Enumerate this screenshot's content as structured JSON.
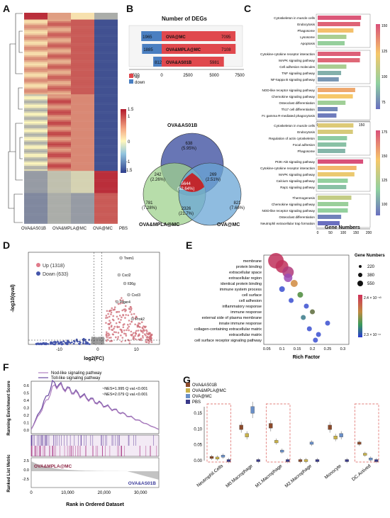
{
  "panel_labels": {
    "A": "A",
    "B": "B",
    "C": "C",
    "D": "D",
    "E": "E",
    "F": "F",
    "G": "G"
  },
  "heatmap": {
    "columns": [
      "OVA&AS01B",
      "OVA&MPLA@MC",
      "OVA@MC",
      "PBS"
    ],
    "scale_ticks": [
      "1.5",
      "1",
      "0",
      "-1",
      "-1.5"
    ]
  },
  "chart_data": [
    {
      "type": "bar",
      "title": "Number of DEGs",
      "categories": [
        "OVA@MC",
        "OVA&MPLA@MC",
        "OVA&AS01B"
      ],
      "series": [
        {
          "name": "up",
          "values": [
            7095,
            7108,
            5981
          ],
          "color": "#e0484d"
        },
        {
          "name": "down",
          "values": [
            1965,
            1885,
            812
          ],
          "color": "#4a7fc1"
        }
      ],
      "x_ticks": [
        "2500",
        "0",
        "2500",
        "5000",
        "7500"
      ],
      "legend": [
        "up",
        "down"
      ]
    },
    {
      "type": "venn",
      "sets": [
        "OVA&AS01B",
        "OVA&MPLA@MC",
        "OVA@MC"
      ],
      "regions": [
        {
          "count": "638",
          "pct": "(5.95%)"
        },
        {
          "count": "242",
          "pct": "(2.26%)"
        },
        {
          "count": "269",
          "pct": "(2.51%)"
        },
        {
          "count": "5644",
          "pct": "(52.64%)"
        },
        {
          "count": "781",
          "pct": "(7.28%)"
        },
        {
          "count": "821",
          "pct": "(7.66%)"
        },
        {
          "count": "2326",
          "pct": "(21.7%)"
        }
      ]
    },
    {
      "type": "bar",
      "orientation": "horizontal",
      "xlabel": "Gene Numbers",
      "groups_top": [
        {
          "terms": [
            "Cytoskeleton in muscle cells",
            "Endocytosis",
            "Phagosome",
            "Lysosome",
            "Apoptosis"
          ],
          "values": [
            148,
            145,
            122,
            98,
            92
          ]
        },
        {
          "terms": [
            "Cytokine-cytokine receptor interaction",
            "MAPK signaling pathway",
            "Cell adhesion molecules",
            "TNF signaling pathway",
            "NF-kappa B signaling pathway"
          ],
          "values": [
            146,
            144,
            98,
            80,
            72
          ]
        },
        {
          "terms": [
            "NOD-like receptor signaling pathway",
            "Chemokine signaling pathway",
            "Osteoclast differentiation",
            "Th17 cell differentiation",
            "Fc gamma R-mediated phagocytosis"
          ],
          "values": [
            128,
            120,
            95,
            68,
            64
          ]
        }
      ],
      "top_ticks": [
        "0",
        "50",
        "100",
        "150"
      ],
      "top_scale": [
        "150",
        "125",
        "100",
        "75"
      ],
      "groups_bottom": [
        {
          "terms": [
            "Cytoskeleton in muscle cells",
            "Endocytosis",
            "Regulation of actin cytoskeleton",
            "Focal adhesion",
            "Phagosome"
          ],
          "values": [
            140,
            138,
            115,
            112,
            108
          ]
        },
        {
          "terms": [
            "PI3K-Akt signaling pathway",
            "Cytokine-cytokine receptor interaction",
            "MAPK signaling pathway",
            "Calcium signaling pathway",
            "Rap1 signaling pathway"
          ],
          "values": [
            178,
            152,
            144,
            118,
            112
          ]
        },
        {
          "terms": [
            "Thermogenesis",
            "Chemokine signaling pathway",
            "NOD-like receptor signaling pathway",
            "Osteoclast differentiation",
            "Neutrophil extracellular trap formation"
          ],
          "values": [
            132,
            120,
            118,
            92,
            86
          ]
        }
      ],
      "bottom_ticks": [
        "0",
        "50",
        "100",
        "150",
        "200"
      ],
      "bottom_scale": [
        "175",
        "150",
        "125",
        "100"
      ]
    },
    {
      "type": "scatter",
      "xlabel": "log2(FC)",
      "ylabel": "-log10(qval)",
      "legend": [
        "Up (1318)",
        "Down (633)"
      ],
      "x_ticks": [
        "-10",
        "0",
        "10"
      ],
      "labels": [
        "Trem1",
        "Cxcl2",
        "Il36g",
        "Cxcl3",
        "Ptger4",
        "Prok2"
      ]
    },
    {
      "type": "bubble",
      "xlabel": "Rich Factor",
      "terms": [
        "membrane",
        "protein binding",
        "extracellular space",
        "extracellular region",
        "identical protein binding",
        "immune system process",
        "cell surface",
        "cell adhesion",
        "inflammatory response",
        "immune response",
        "external side of plasma membrane",
        "innate immune response",
        "collagen-containing extracellular matrix",
        "extracellular matrix",
        "cell surface receptor signaling pathway"
      ],
      "rich_factor": [
        0.08,
        0.1,
        0.12,
        0.12,
        0.14,
        0.1,
        0.16,
        0.13,
        0.18,
        0.2,
        0.17,
        0.25,
        0.19,
        0.22,
        0.21
      ],
      "x_ticks": [
        "0.05",
        "0.1",
        "0.15",
        "0.2",
        "0.25",
        "0.3"
      ],
      "size_legend_title": "Gene Numbers",
      "size_legend": [
        "220",
        "380",
        "550"
      ],
      "color_max": "2.4 × 10⁻⁵³",
      "color_min": "2.3 × 10⁻¹⁷"
    },
    {
      "type": "line",
      "ylabel": "Running Enrichment Score",
      "ylabel2": "Ranked List Metric",
      "xlabel": "Rank in Ordered Dataset",
      "legend": [
        "Nod-like signaling pathway",
        "Toll-like signaling pathway"
      ],
      "stats": [
        "NES=1.995 Q val.<0.001",
        "NES=2.079 Q val.<0.001"
      ],
      "y_ticks": [
        "0.6",
        "0.5",
        "0.4",
        "0.3",
        "0.2",
        "0.1",
        "0.0"
      ],
      "x_ticks": [
        "0",
        "10,000",
        "20,000",
        "30,000"
      ],
      "pos_label": "OVA&MPLA@MC",
      "neg_label": "OVA&AS01B",
      "metric_ticks": [
        "2.5",
        "0.0",
        "-2.5"
      ]
    },
    {
      "type": "box",
      "legend": [
        "OVA&AS01B",
        "OVA&MPLA@MC",
        "OVA@MC",
        "PBS"
      ],
      "categories": [
        "Neutrophil.Cells",
        "M0.Macrophage",
        "M1.Macrophage",
        "M2.Macrophage",
        "Monocyte",
        "DC.Actived"
      ],
      "medians": [
        [
          0.01,
          0.008,
          0.014,
          0.0
        ],
        [
          0.105,
          0.08,
          0.16,
          0.0
        ],
        [
          0.11,
          0.06,
          0.03,
          0.0
        ],
        [
          0.0,
          0.0,
          0.055,
          0.0
        ],
        [
          0.105,
          0.073,
          0.08,
          0.0
        ],
        [
          0.055,
          0.02,
          0.005,
          0.0
        ]
      ],
      "y_ticks": [
        "0.15",
        "0.10",
        "0.05",
        "0.00"
      ]
    }
  ],
  "colors": {
    "group1": "#8b4a2b",
    "group2": "#c9b24a",
    "group3": "#6a8fc7",
    "group4": "#3a3a8a",
    "up": "#e0484d",
    "down": "#4a7fc1"
  }
}
